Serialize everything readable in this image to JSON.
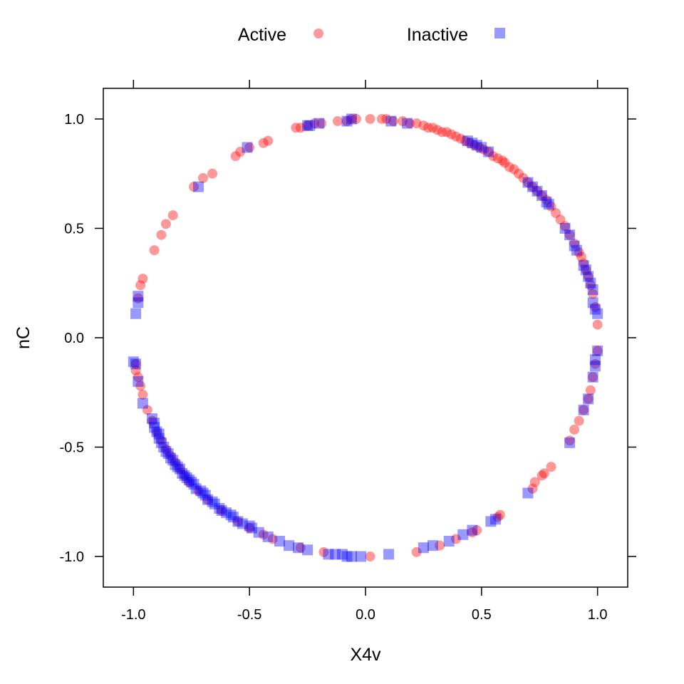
{
  "chart_data": {
    "type": "scatter",
    "title": "",
    "xlabel": "X4v",
    "ylabel": "nC",
    "xlim": [
      -1.13,
      1.13
    ],
    "ylim": [
      -1.14,
      1.14
    ],
    "x_ticks": [
      -1.0,
      -0.5,
      0.0,
      0.5,
      1.0
    ],
    "y_ticks": [
      -1.0,
      -0.5,
      0.0,
      0.5,
      1.0
    ],
    "x_tick_labels": [
      "-1.0",
      "-0.5",
      "0.0",
      "0.5",
      "1.0"
    ],
    "y_tick_labels": [
      "-1.0",
      "-0.5",
      "0.0",
      "0.5",
      "1.0"
    ],
    "grid": false,
    "legend_position": "top",
    "series": [
      {
        "name": "Active",
        "marker": "circle",
        "color": "#FF0000",
        "opacity": 0.4,
        "points": [
          [
            -0.3,
            0.96
          ],
          [
            -0.28,
            0.96
          ],
          [
            -0.25,
            0.97
          ],
          [
            -0.22,
            0.98
          ],
          [
            -0.19,
            0.98
          ],
          [
            -0.12,
            0.99
          ],
          [
            -0.08,
            0.99
          ],
          [
            -0.06,
            1.0
          ],
          [
            -0.04,
            1.0
          ],
          [
            0.02,
            1.0
          ],
          [
            0.07,
            1.0
          ],
          [
            0.09,
            1.0
          ],
          [
            0.12,
            0.99
          ],
          [
            0.16,
            0.99
          ],
          [
            0.19,
            0.98
          ],
          [
            0.22,
            0.98
          ],
          [
            0.25,
            0.97
          ],
          [
            0.27,
            0.96
          ],
          [
            0.29,
            0.96
          ],
          [
            0.31,
            0.95
          ],
          [
            0.33,
            0.94
          ],
          [
            0.35,
            0.94
          ],
          [
            0.37,
            0.93
          ],
          [
            0.39,
            0.92
          ],
          [
            0.41,
            0.91
          ],
          [
            0.43,
            0.9
          ],
          [
            0.45,
            0.89
          ],
          [
            0.47,
            0.88
          ],
          [
            0.49,
            0.87
          ],
          [
            0.51,
            0.86
          ],
          [
            0.53,
            0.85
          ],
          [
            0.55,
            0.83
          ],
          [
            0.57,
            0.82
          ],
          [
            0.59,
            0.81
          ],
          [
            0.6,
            0.8
          ],
          [
            0.62,
            0.78
          ],
          [
            0.64,
            0.77
          ],
          [
            0.66,
            0.75
          ],
          [
            0.68,
            0.73
          ],
          [
            0.7,
            0.71
          ],
          [
            0.72,
            0.69
          ],
          [
            0.74,
            0.67
          ],
          [
            0.76,
            0.65
          ],
          [
            0.78,
            0.63
          ],
          [
            0.8,
            0.6
          ],
          [
            0.82,
            0.57
          ],
          [
            0.84,
            0.54
          ],
          [
            0.86,
            0.51
          ],
          [
            0.88,
            0.47
          ],
          [
            0.9,
            0.43
          ],
          [
            0.92,
            0.39
          ],
          [
            0.93,
            0.37
          ],
          [
            0.94,
            0.34
          ],
          [
            0.95,
            0.31
          ],
          [
            0.96,
            0.28
          ],
          [
            0.97,
            0.24
          ],
          [
            0.98,
            0.2
          ],
          [
            0.99,
            0.14
          ],
          [
            1.0,
            0.06
          ],
          [
            1.0,
            -0.06
          ],
          [
            0.99,
            -0.12
          ],
          [
            0.98,
            -0.18
          ],
          [
            0.97,
            -0.24
          ],
          [
            0.96,
            -0.28
          ],
          [
            0.94,
            -0.33
          ],
          [
            0.92,
            -0.38
          ],
          [
            0.9,
            -0.42
          ],
          [
            0.88,
            -0.47
          ],
          [
            0.8,
            -0.59
          ],
          [
            0.77,
            -0.62
          ],
          [
            0.76,
            -0.63
          ],
          [
            0.73,
            -0.66
          ],
          [
            0.72,
            -0.69
          ],
          [
            0.58,
            -0.81
          ],
          [
            0.57,
            -0.82
          ],
          [
            0.48,
            -0.88
          ],
          [
            0.46,
            -0.89
          ],
          [
            0.39,
            -0.92
          ],
          [
            0.32,
            -0.95
          ],
          [
            0.22,
            -0.98
          ],
          [
            0.02,
            -1.0
          ],
          [
            -0.18,
            -0.98
          ],
          [
            -0.28,
            -0.96
          ],
          [
            -0.4,
            -0.92
          ],
          [
            -0.44,
            -0.9
          ],
          [
            -0.5,
            -0.87
          ],
          [
            -0.55,
            -0.84
          ],
          [
            -0.62,
            -0.79
          ],
          [
            -0.68,
            -0.74
          ],
          [
            -0.72,
            -0.7
          ],
          [
            -0.76,
            -0.66
          ],
          [
            -0.78,
            -0.63
          ],
          [
            -0.8,
            -0.6
          ],
          [
            -0.82,
            -0.57
          ],
          [
            -0.84,
            -0.54
          ],
          [
            -0.86,
            -0.51
          ],
          [
            -0.88,
            -0.47
          ],
          [
            -0.9,
            -0.43
          ],
          [
            -0.92,
            -0.38
          ],
          [
            -0.94,
            -0.33
          ],
          [
            -0.96,
            -0.26
          ],
          [
            -0.97,
            -0.22
          ],
          [
            -0.98,
            -0.18
          ],
          [
            -0.99,
            -0.15
          ],
          [
            -0.99,
            -0.12
          ],
          [
            -0.98,
            0.18
          ],
          [
            -0.97,
            0.24
          ],
          [
            -0.96,
            0.27
          ],
          [
            -0.91,
            0.4
          ],
          [
            -0.88,
            0.47
          ],
          [
            -0.86,
            0.52
          ],
          [
            -0.83,
            0.56
          ],
          [
            -0.74,
            0.69
          ],
          [
            -0.7,
            0.73
          ],
          [
            -0.66,
            0.75
          ],
          [
            -0.56,
            0.83
          ],
          [
            -0.54,
            0.85
          ],
          [
            -0.5,
            0.87
          ],
          [
            -0.44,
            0.89
          ],
          [
            -0.42,
            0.9
          ]
        ]
      },
      {
        "name": "Inactive",
        "marker": "square",
        "color": "#0000FF",
        "opacity": 0.4,
        "points": [
          [
            -0.25,
            0.97
          ],
          [
            -0.2,
            0.98
          ],
          [
            -0.08,
            0.99
          ],
          [
            -0.06,
            1.0
          ],
          [
            0.11,
            0.99
          ],
          [
            0.18,
            0.98
          ],
          [
            0.46,
            0.89
          ],
          [
            0.48,
            0.88
          ],
          [
            0.5,
            0.87
          ],
          [
            0.53,
            0.85
          ],
          [
            0.72,
            0.69
          ],
          [
            0.74,
            0.67
          ],
          [
            0.76,
            0.65
          ],
          [
            0.78,
            0.62
          ],
          [
            0.79,
            0.61
          ],
          [
            0.86,
            0.5
          ],
          [
            0.88,
            0.47
          ],
          [
            0.9,
            0.42
          ],
          [
            0.91,
            0.4
          ],
          [
            0.94,
            0.33
          ],
          [
            0.95,
            0.31
          ],
          [
            0.96,
            0.28
          ],
          [
            0.97,
            0.25
          ],
          [
            0.98,
            0.22
          ],
          [
            0.98,
            0.16
          ],
          [
            0.99,
            0.13
          ],
          [
            1.0,
            0.11
          ],
          [
            1.0,
            -0.06
          ],
          [
            0.99,
            -0.1
          ],
          [
            0.99,
            -0.13
          ],
          [
            0.98,
            -0.18
          ],
          [
            0.96,
            -0.28
          ],
          [
            0.94,
            -0.33
          ],
          [
            0.88,
            -0.48
          ],
          [
            0.7,
            -0.71
          ],
          [
            0.56,
            -0.83
          ],
          [
            0.54,
            -0.84
          ],
          [
            0.46,
            -0.88
          ],
          [
            0.42,
            -0.9
          ],
          [
            0.36,
            -0.93
          ],
          [
            0.29,
            -0.95
          ],
          [
            0.25,
            -0.96
          ],
          [
            0.1,
            -0.99
          ],
          [
            -0.02,
            -1.0
          ],
          [
            -0.06,
            -1.0
          ],
          [
            -0.08,
            -1.0
          ],
          [
            -0.1,
            -0.99
          ],
          [
            -0.13,
            -0.99
          ],
          [
            -0.16,
            -0.99
          ],
          [
            -0.25,
            -0.97
          ],
          [
            -0.29,
            -0.96
          ],
          [
            -0.33,
            -0.95
          ],
          [
            -0.37,
            -0.93
          ],
          [
            -0.42,
            -0.91
          ],
          [
            -0.46,
            -0.89
          ],
          [
            -0.49,
            -0.87
          ],
          [
            -0.5,
            -0.86
          ],
          [
            -0.53,
            -0.85
          ],
          [
            -0.55,
            -0.84
          ],
          [
            -0.57,
            -0.82
          ],
          [
            -0.58,
            -0.81
          ],
          [
            -0.6,
            -0.8
          ],
          [
            -0.62,
            -0.79
          ],
          [
            -0.63,
            -0.78
          ],
          [
            -0.65,
            -0.76
          ],
          [
            -0.66,
            -0.75
          ],
          [
            -0.68,
            -0.74
          ],
          [
            -0.69,
            -0.72
          ],
          [
            -0.7,
            -0.71
          ],
          [
            -0.71,
            -0.7
          ],
          [
            -0.73,
            -0.69
          ],
          [
            -0.74,
            -0.67
          ],
          [
            -0.75,
            -0.66
          ],
          [
            -0.76,
            -0.65
          ],
          [
            -0.77,
            -0.64
          ],
          [
            -0.78,
            -0.63
          ],
          [
            -0.79,
            -0.62
          ],
          [
            -0.8,
            -0.6
          ],
          [
            -0.81,
            -0.59
          ],
          [
            -0.82,
            -0.58
          ],
          [
            -0.83,
            -0.56
          ],
          [
            -0.84,
            -0.55
          ],
          [
            -0.85,
            -0.53
          ],
          [
            -0.86,
            -0.52
          ],
          [
            -0.87,
            -0.5
          ],
          [
            -0.88,
            -0.48
          ],
          [
            -0.89,
            -0.46
          ],
          [
            -0.89,
            -0.44
          ],
          [
            -0.9,
            -0.43
          ],
          [
            -0.91,
            -0.41
          ],
          [
            -0.91,
            -0.39
          ],
          [
            -0.92,
            -0.37
          ],
          [
            -0.96,
            -0.3
          ],
          [
            -0.98,
            -0.2
          ],
          [
            -1.0,
            -0.11
          ],
          [
            -0.99,
            -0.12
          ],
          [
            -0.99,
            0.11
          ],
          [
            -0.98,
            0.16
          ],
          [
            -0.98,
            0.19
          ],
          [
            -0.72,
            0.69
          ],
          [
            -0.51,
            0.87
          ],
          [
            -0.24,
            0.97
          ],
          [
            0.44,
            0.9
          ],
          [
            0.7,
            0.71
          ]
        ]
      }
    ]
  }
}
